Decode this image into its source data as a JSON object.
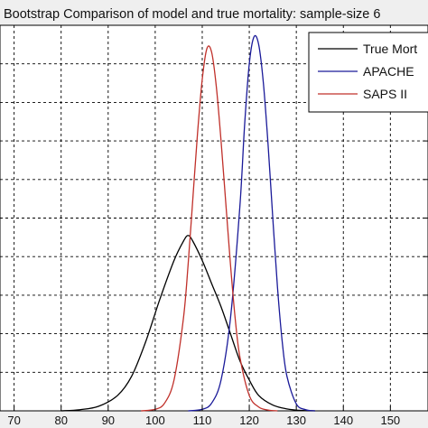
{
  "chart_data": {
    "type": "line",
    "title": "Bootstrap Comparison of model and true mortality: sample-size 6",
    "xlabel": "",
    "ylabel": "",
    "xlim": [
      67,
      158
    ],
    "ylim": [
      0,
      1.0
    ],
    "xticks": [
      70,
      80,
      90,
      100,
      110,
      120,
      130,
      140,
      150
    ],
    "xtick_labels": [
      "70",
      "80",
      "90",
      "100",
      "110",
      "120",
      "130",
      "140",
      "150"
    ],
    "yticks": [
      0.1,
      0.2,
      0.3,
      0.4,
      0.5,
      0.6,
      0.7,
      0.8,
      0.9
    ],
    "grid": true,
    "grid_style": "dashed",
    "legend_position": "top-right",
    "series": [
      {
        "name": "True Mort",
        "color": "#000000",
        "x": [
          80,
          84,
          88,
          92,
          95,
          98,
          101,
          104,
          106,
          107,
          108,
          110,
          112,
          114,
          116,
          118,
          120,
          122,
          125,
          128,
          131,
          134
        ],
        "y": [
          0.0,
          0.003,
          0.012,
          0.04,
          0.09,
          0.18,
          0.29,
          0.39,
          0.44,
          0.455,
          0.44,
          0.39,
          0.33,
          0.27,
          0.2,
          0.13,
          0.08,
          0.04,
          0.015,
          0.005,
          0.001,
          0.0
        ]
      },
      {
        "name": "APACHE",
        "color": "#1a1a99",
        "x": [
          107,
          110,
          112,
          114,
          116,
          118,
          119,
          120,
          121,
          122,
          123,
          124,
          125,
          126,
          127,
          128,
          130,
          132,
          134
        ],
        "y": [
          0.0,
          0.004,
          0.02,
          0.08,
          0.24,
          0.53,
          0.74,
          0.9,
          0.97,
          0.95,
          0.85,
          0.69,
          0.5,
          0.32,
          0.18,
          0.09,
          0.018,
          0.003,
          0.0
        ]
      },
      {
        "name": "SAPS II",
        "color": "#c0302a",
        "x": [
          97,
          100,
          102,
          104,
          106,
          107,
          108,
          109,
          110,
          111,
          112,
          113,
          114,
          115,
          116,
          117,
          118,
          120,
          122,
          124,
          126
        ],
        "y": [
          0.0,
          0.004,
          0.02,
          0.08,
          0.24,
          0.38,
          0.55,
          0.72,
          0.86,
          0.94,
          0.93,
          0.84,
          0.7,
          0.54,
          0.38,
          0.24,
          0.14,
          0.04,
          0.01,
          0.002,
          0.0
        ]
      }
    ]
  }
}
